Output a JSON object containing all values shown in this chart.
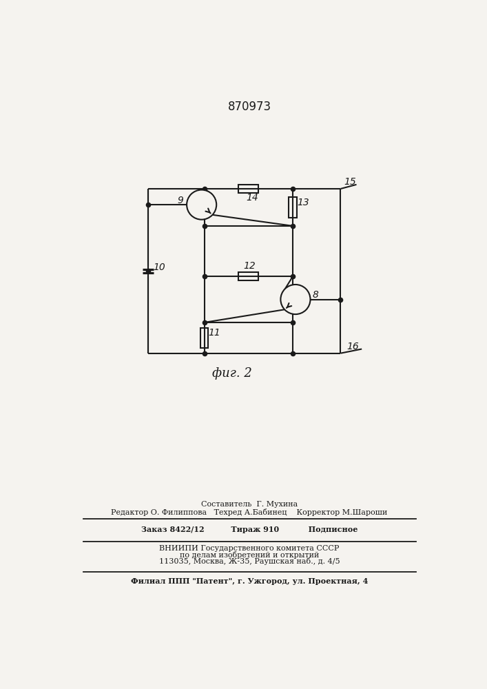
{
  "title": "870973",
  "fig_label": "фиг. 2",
  "background_color": "#f5f3ef",
  "line_color": "#1a1a1a",
  "text_color": "#1a1a1a",
  "footer_line1": "Составитель  Г. Мухина",
  "footer_line2": "Редактор О. Филиппова   Техред А.Бабинец    Корректор М.Шароши",
  "footer_line3": "Заказ 8422/12          Тираж 910           Подписное",
  "footer_line4": "ВНИИПИ Государственного комитета СССР",
  "footer_line5": "по делам изобретений и открытий",
  "footer_line6": "113035, Москва, Ж-35, Раушская наб., д. 4/5",
  "footer_line7": "Филиал ППП \"Патент\", г. Ужгород, ул. Проектная, 4"
}
